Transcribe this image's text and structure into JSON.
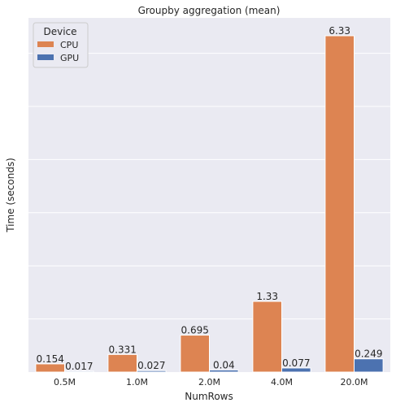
{
  "chart_data": {
    "type": "bar",
    "title": "Groupby aggregation (mean)",
    "xlabel": "NumRows",
    "ylabel": "Time (seconds)",
    "categories": [
      "0.5M",
      "1.0M",
      "2.0M",
      "4.0M",
      "20.0M"
    ],
    "series": [
      {
        "name": "CPU",
        "color": "#dd8452",
        "values": [
          0.154,
          0.331,
          0.695,
          1.33,
          6.33
        ],
        "labels": [
          "0.154",
          "0.331",
          "0.695",
          "1.33",
          "6.33"
        ]
      },
      {
        "name": "GPU",
        "color": "#4c72b0",
        "values": [
          0.017,
          0.027,
          0.04,
          0.077,
          0.249
        ],
        "labels": [
          "0.017",
          "0.027",
          "0.04",
          "0.077",
          "0.249"
        ]
      }
    ],
    "legend": {
      "title": "Device",
      "placement": "top-left"
    },
    "ylim": [
      0,
      6.33
    ],
    "y_grid": [
      1,
      2,
      3,
      4,
      5,
      6
    ],
    "grid": true,
    "background": "#eaeaf2"
  }
}
